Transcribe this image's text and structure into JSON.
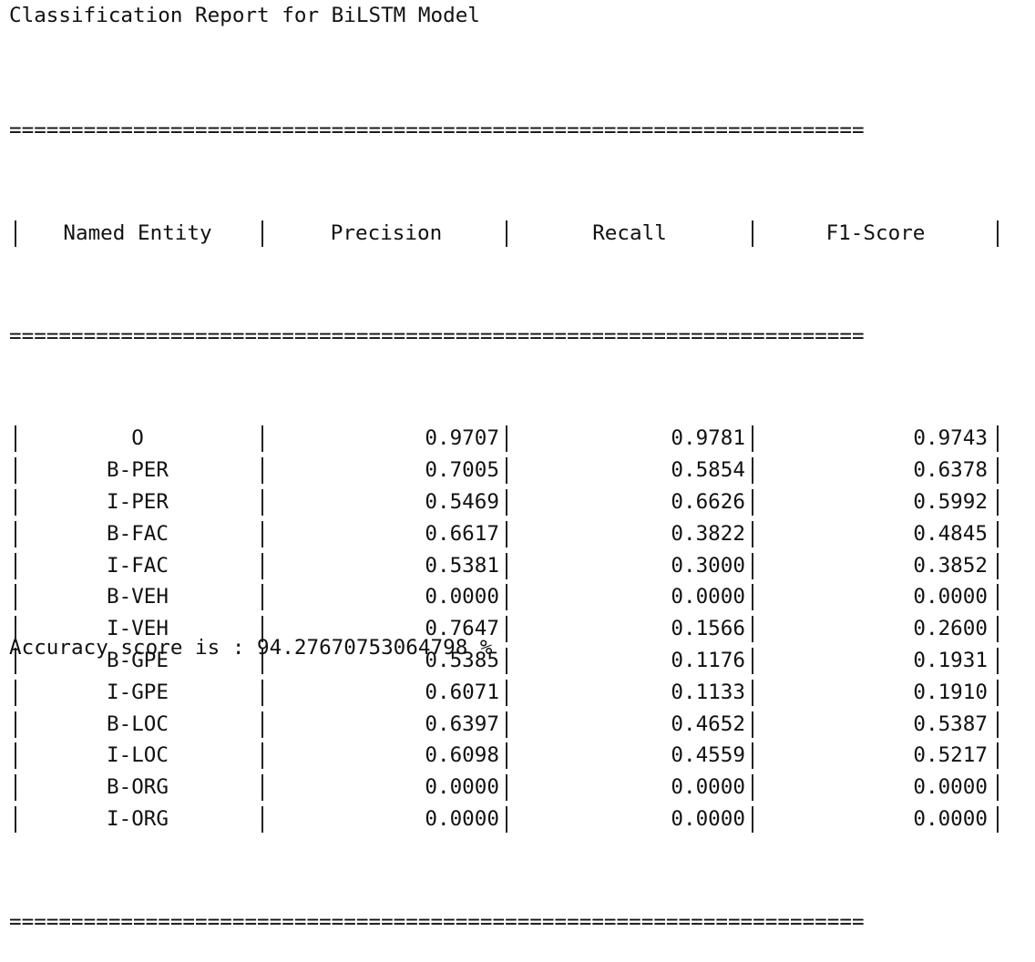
{
  "title": "Classification Report for BiLSTM Model",
  "separator": "=====================================================================",
  "headers": [
    "Named Entity",
    "Precision",
    "Recall",
    "F1-Score"
  ],
  "rows": [
    {
      "entity": "O",
      "precision": "0.9707",
      "recall": "0.9781",
      "f1": "0.9743"
    },
    {
      "entity": "B-PER",
      "precision": "0.7005",
      "recall": "0.5854",
      "f1": "0.6378"
    },
    {
      "entity": "I-PER",
      "precision": "0.5469",
      "recall": "0.6626",
      "f1": "0.5992"
    },
    {
      "entity": "B-FAC",
      "precision": "0.6617",
      "recall": "0.3822",
      "f1": "0.4845"
    },
    {
      "entity": "I-FAC",
      "precision": "0.5381",
      "recall": "0.3000",
      "f1": "0.3852"
    },
    {
      "entity": "B-VEH",
      "precision": "0.0000",
      "recall": "0.0000",
      "f1": "0.0000"
    },
    {
      "entity": "I-VEH",
      "precision": "0.7647",
      "recall": "0.1566",
      "f1": "0.2600"
    },
    {
      "entity": "B-GPE",
      "precision": "0.5385",
      "recall": "0.1176",
      "f1": "0.1931"
    },
    {
      "entity": "I-GPE",
      "precision": "0.6071",
      "recall": "0.1133",
      "f1": "0.1910"
    },
    {
      "entity": "B-LOC",
      "precision": "0.6397",
      "recall": "0.4652",
      "f1": "0.5387"
    },
    {
      "entity": "I-LOC",
      "precision": "0.6098",
      "recall": "0.4559",
      "f1": "0.5217"
    },
    {
      "entity": "B-ORG",
      "precision": "0.0000",
      "recall": "0.0000",
      "f1": "0.0000"
    },
    {
      "entity": "I-ORG",
      "precision": "0.0000",
      "recall": "0.0000",
      "f1": "0.0000"
    }
  ],
  "accuracy": "Accuracy score is : 94.27670753064798 %"
}
